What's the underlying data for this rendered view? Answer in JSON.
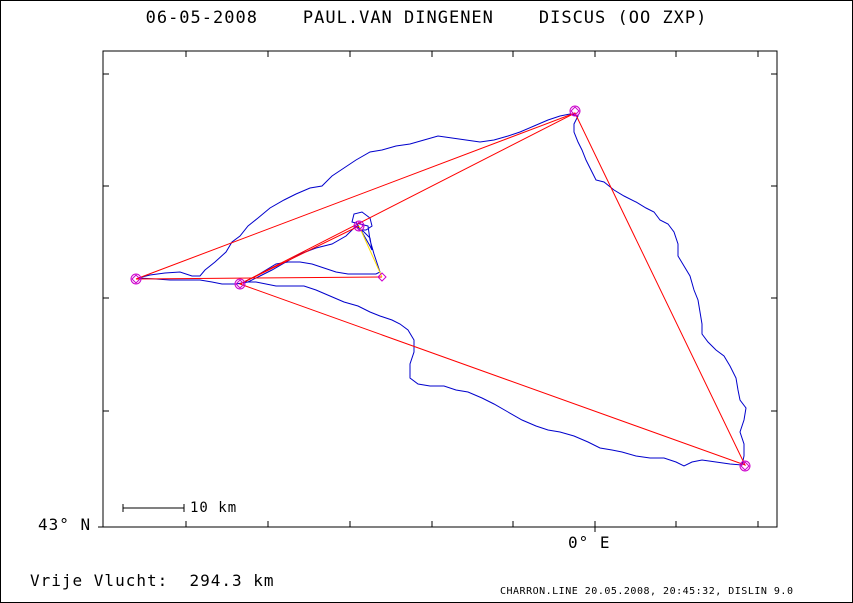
{
  "header": {
    "date": "06-05-2008",
    "pilot": "PAUL.VAN DINGENEN",
    "glider": "DISCUS (OO ZXP)"
  },
  "axes": {
    "lat_label": "43° N",
    "lon_label": "0° E"
  },
  "scale": {
    "label": "10 km"
  },
  "summary": {
    "label": "Vrije Vlucht:",
    "distance": "294.3 km"
  },
  "footer": {
    "file": "CHARRON.LINE",
    "date": "20.05.2008,",
    "time": "20:45:32,",
    "software": "DISLIN 9.0"
  },
  "colors": {
    "track": "#0000cc",
    "course": "#ff0000",
    "turnpoint": "#cc00cc",
    "final_leg": "#ffdd00",
    "frame": "#000000"
  },
  "map": {
    "turnpoints": [
      "start",
      "tp1",
      "tp2",
      "tp3",
      "tp4",
      "finish"
    ]
  }
}
